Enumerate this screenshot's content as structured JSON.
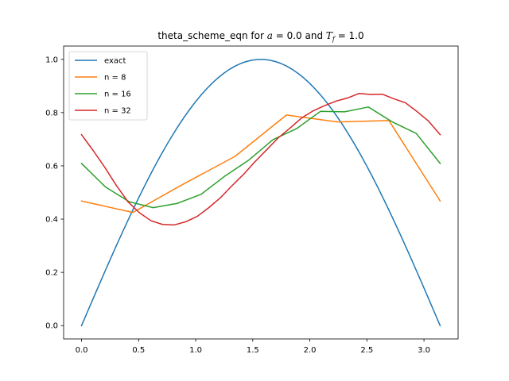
{
  "chart_data": {
    "type": "line",
    "title": {
      "prefix": "theta_scheme_eqn for ",
      "a_symbol": "a",
      "a_value": " = 0.0",
      "mid": " and ",
      "T_symbol": "T",
      "T_sub": "f",
      "T_value": " = 1.0"
    },
    "xlabel": "",
    "ylabel": "",
    "xlim": [
      -0.157,
      3.299
    ],
    "ylim": [
      -0.05,
      1.05
    ],
    "xticks": [
      0.0,
      0.5,
      1.0,
      1.5,
      2.0,
      2.5,
      3.0
    ],
    "xtick_labels": [
      "0.0",
      "0.5",
      "1.0",
      "1.5",
      "2.0",
      "2.5",
      "3.0"
    ],
    "yticks": [
      0.0,
      0.2,
      0.4,
      0.6,
      0.8,
      1.0
    ],
    "ytick_labels": [
      "0.0",
      "0.2",
      "0.4",
      "0.6",
      "0.8",
      "1.0"
    ],
    "grid": false,
    "legend_position": "upper-left",
    "series": [
      {
        "name": "exact",
        "color": "#1f77b4",
        "function": "sin",
        "x_range": [
          0,
          3.14159
        ],
        "samples": 64
      },
      {
        "name": "n = 8",
        "color": "#ff7f0e",
        "x": [
          0.0,
          0.449,
          0.898,
          1.346,
          1.795,
          2.244,
          2.693,
          3.142
        ],
        "y": [
          0.468,
          0.425,
          0.533,
          0.636,
          0.791,
          0.765,
          0.77,
          0.468
        ]
      },
      {
        "name": "n = 16",
        "color": "#2ca02c",
        "x": [
          0.0,
          0.209,
          0.419,
          0.628,
          0.838,
          1.047,
          1.257,
          1.466,
          1.676,
          1.885,
          2.094,
          2.304,
          2.513,
          2.723,
          2.932,
          3.142
        ],
        "y": [
          0.609,
          0.521,
          0.465,
          0.443,
          0.459,
          0.493,
          0.562,
          0.622,
          0.698,
          0.74,
          0.805,
          0.803,
          0.821,
          0.765,
          0.722,
          0.609
        ]
      },
      {
        "name": "n = 32",
        "color": "#d62728",
        "x": [
          0.0,
          0.101,
          0.203,
          0.304,
          0.405,
          0.507,
          0.608,
          0.709,
          0.811,
          0.912,
          1.013,
          1.115,
          1.216,
          1.317,
          1.419,
          1.52,
          1.621,
          1.723,
          1.824,
          1.925,
          2.027,
          2.128,
          2.229,
          2.331,
          2.432,
          2.533,
          2.635,
          2.736,
          2.837,
          2.939,
          3.04,
          3.142
        ],
        "y": [
          0.717,
          0.658,
          0.595,
          0.527,
          0.466,
          0.424,
          0.394,
          0.38,
          0.378,
          0.39,
          0.41,
          0.443,
          0.48,
          0.525,
          0.568,
          0.616,
          0.66,
          0.705,
          0.741,
          0.779,
          0.806,
          0.826,
          0.843,
          0.855,
          0.872,
          0.868,
          0.869,
          0.852,
          0.837,
          0.804,
          0.768,
          0.717
        ]
      }
    ]
  }
}
